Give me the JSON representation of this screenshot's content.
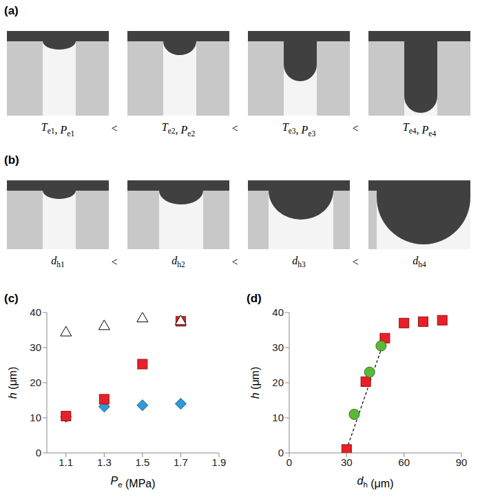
{
  "diagrams": [
    {
      "title": "(a)",
      "comparator": "<",
      "separator": ", ",
      "labels": [
        [
          {
            "symbol": "T",
            "sub": "e1"
          },
          {
            "symbol": "P",
            "sub": "e1"
          }
        ],
        [
          {
            "symbol": "T",
            "sub": "e2"
          },
          {
            "symbol": "P",
            "sub": "e2"
          }
        ],
        [
          {
            "symbol": "T",
            "sub": "e3"
          },
          {
            "symbol": "P",
            "sub": "e3"
          }
        ],
        [
          {
            "symbol": "T",
            "sub": "e4"
          },
          {
            "symbol": "P",
            "sub": "e4"
          }
        ]
      ]
    },
    {
      "title": "(b)",
      "comparator": "<",
      "labels": [
        [
          {
            "symbol": "d",
            "sub": "h1"
          }
        ],
        [
          {
            "symbol": "d",
            "sub": "h2"
          }
        ],
        [
          {
            "symbol": "d",
            "sub": "h3"
          }
        ],
        [
          {
            "symbol": "d",
            "sub": "h4"
          }
        ]
      ]
    }
  ],
  "chart_data": [
    {
      "type": "scatter",
      "title": "(c)",
      "x_label": {
        "symbol": "P",
        "sub": "e",
        "unit": " (MPa)"
      },
      "y_label": {
        "symbol": "h",
        "unit": " (μm)"
      },
      "x": [
        1.1,
        1.3,
        1.5,
        1.7
      ],
      "xlim": [
        1.0,
        1.9
      ],
      "xticks": [
        1.1,
        1.3,
        1.5,
        1.7,
        1.9
      ],
      "ylim": [
        0,
        40
      ],
      "yticks": [
        0,
        10,
        20,
        30,
        40
      ],
      "grid": false,
      "series": [
        {
          "marker": "diamond",
          "color": "#2f9ad8",
          "values": [
            10.3,
            13.2,
            13.6,
            14.0
          ]
        },
        {
          "marker": "square",
          "color": "#e8202a",
          "values": [
            10.5,
            15.3,
            25.3,
            37.5
          ]
        },
        {
          "marker": "triangle",
          "color": "#ffffff",
          "values": [
            34.5,
            36.3,
            38.5,
            37.7
          ]
        }
      ]
    },
    {
      "type": "scatter",
      "title": "(d)",
      "x_label": {
        "symbol": "d",
        "sub": "h",
        "unit": " (μm)"
      },
      "y_label": {
        "symbol": "h",
        "unit": " (μm)"
      },
      "xlim": [
        0,
        90
      ],
      "xticks": [
        0,
        30,
        60,
        90
      ],
      "ylim": [
        0,
        40
      ],
      "yticks": [
        0,
        10,
        20,
        30,
        40
      ],
      "grid": false,
      "series": [
        {
          "type": "line",
          "line_style": "dashed",
          "color": "#000000",
          "x": [
            30,
            49
          ],
          "values": [
            1,
            31
          ]
        },
        {
          "marker": "square",
          "color": "#e8202a",
          "x": [
            30,
            40,
            50,
            60,
            70,
            80
          ],
          "values": [
            1,
            20.3,
            32.7,
            37,
            37.4,
            37.8
          ]
        },
        {
          "marker": "circle",
          "color": "#5cb83a",
          "x": [
            34,
            42,
            48
          ],
          "values": [
            11,
            23,
            30.5
          ]
        }
      ]
    }
  ]
}
